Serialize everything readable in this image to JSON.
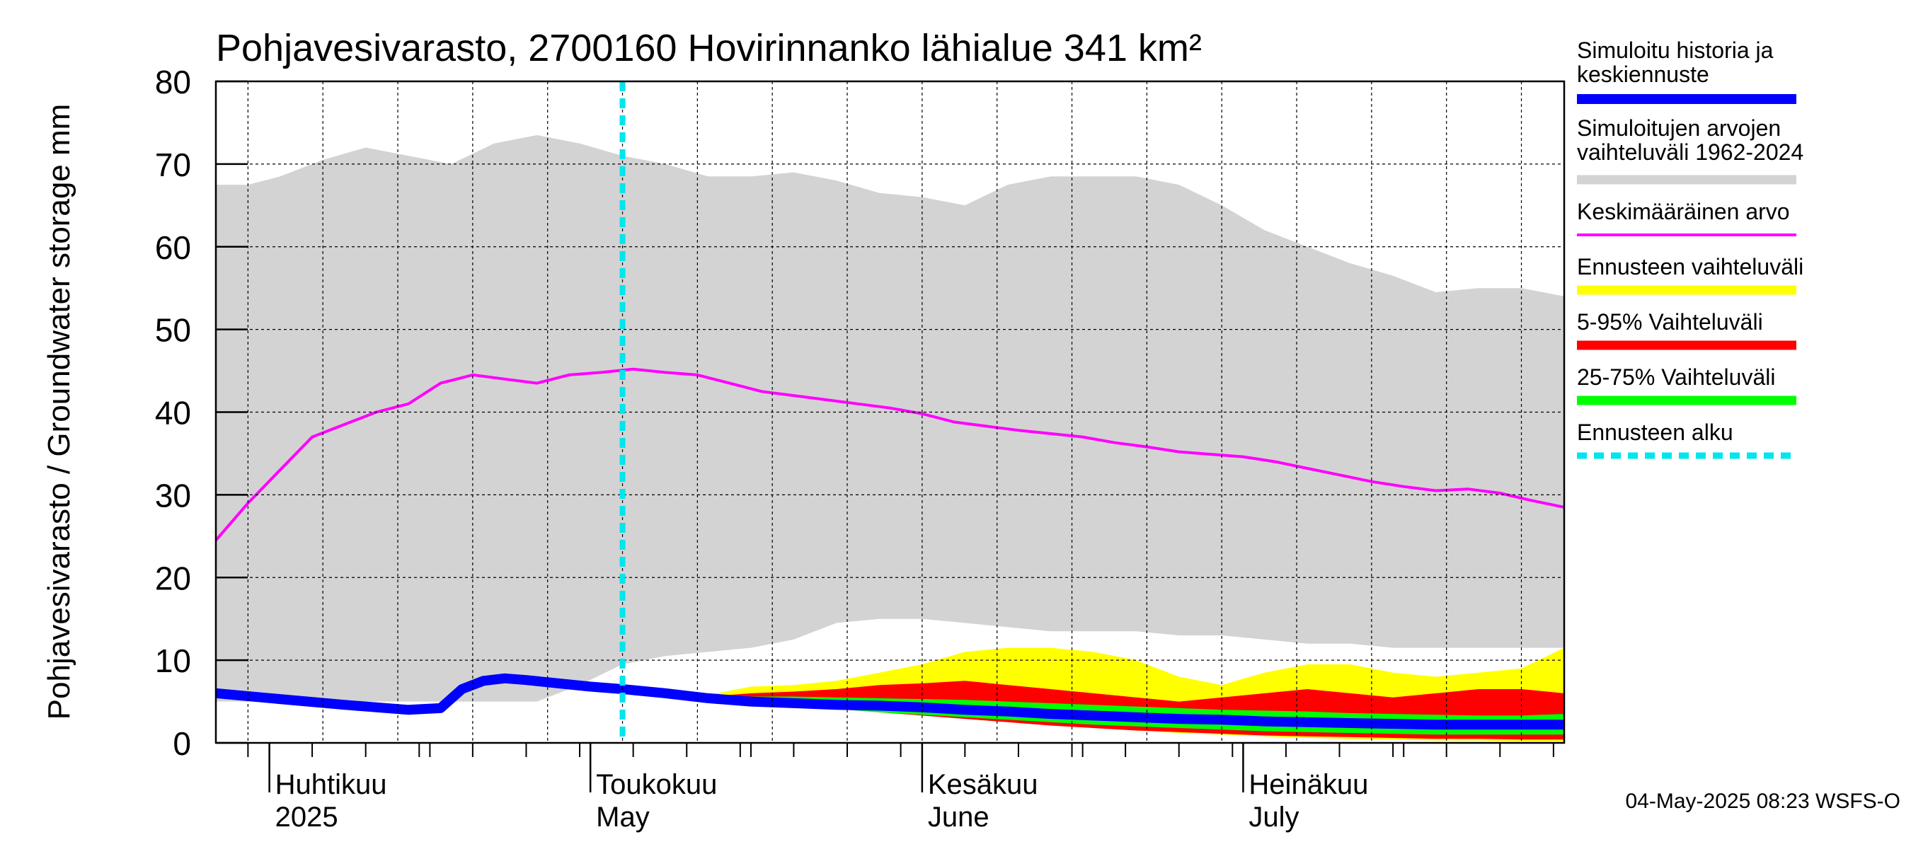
{
  "chart_data": {
    "type": "area",
    "title": "Pohjavesivarasto, 2700160 Hovirinnanko lähialue 341 km²",
    "ylabel": "Pohjavesivarasto / Groundwater storage   mm",
    "ylim": [
      0,
      80
    ],
    "yticks": [
      0,
      10,
      20,
      30,
      40,
      50,
      60,
      70,
      80
    ],
    "x_range": [
      "2025-03-27",
      "2025-07-31"
    ],
    "forecast_start": "2025-05-04",
    "month_labels": [
      {
        "date": "2025-04-01",
        "fi": "Huhtikuu",
        "en": "2025"
      },
      {
        "date": "2025-05-01",
        "fi": "Toukokuu",
        "en": "May"
      },
      {
        "date": "2025-06-01",
        "fi": "Kesäkuu",
        "en": "June"
      },
      {
        "date": "2025-07-01",
        "fi": "Heinäkuu",
        "en": "July"
      }
    ],
    "legend": [
      {
        "label": "Simuloitu historia ja\nkeskiennuste",
        "color": "#0000ff",
        "style": "thick"
      },
      {
        "label": "Simuloitujen arvojen\nvaihteluväli 1962-2024",
        "color": "#d3d3d3",
        "style": "band"
      },
      {
        "label": "Keskimääräinen arvo",
        "color": "#ff00ff",
        "style": "line"
      },
      {
        "label": "Ennusteen vaihteluväli",
        "color": "#ffff00",
        "style": "band"
      },
      {
        "label": "5-95% Vaihteluväli",
        "color": "#ff0000",
        "style": "band"
      },
      {
        "label": "25-75% Vaihteluväli",
        "color": "#00ff00",
        "style": "band"
      },
      {
        "label": "Ennusteen alku",
        "color": "#00e5ee",
        "style": "dashed"
      }
    ],
    "series": [
      {
        "name": "Simuloitujen arvojen vaihteluväli 1962-2024",
        "kind": "band",
        "x": [
          "2025-03-27",
          "2025-03-30",
          "2025-04-02",
          "2025-04-06",
          "2025-04-10",
          "2025-04-14",
          "2025-04-18",
          "2025-04-22",
          "2025-04-26",
          "2025-04-30",
          "2025-05-04",
          "2025-05-08",
          "2025-05-12",
          "2025-05-16",
          "2025-05-20",
          "2025-05-24",
          "2025-05-28",
          "2025-06-01",
          "2025-06-05",
          "2025-06-09",
          "2025-06-13",
          "2025-06-17",
          "2025-06-21",
          "2025-06-25",
          "2025-06-29",
          "2025-07-03",
          "2025-07-07",
          "2025-07-11",
          "2025-07-15",
          "2025-07-19",
          "2025-07-23",
          "2025-07-27",
          "2025-07-31"
        ],
        "low": [
          5.0,
          5.0,
          5.0,
          5.0,
          5.0,
          5.0,
          5.0,
          5.0,
          5.0,
          7.0,
          9.5,
          10.5,
          11.0,
          11.5,
          12.5,
          14.5,
          15.0,
          15.0,
          14.5,
          14.0,
          13.5,
          13.5,
          13.5,
          13.0,
          13.0,
          12.5,
          12.0,
          12.0,
          11.5,
          11.5,
          11.5,
          11.5,
          11.5
        ],
        "high": [
          67.5,
          67.5,
          68.5,
          70.5,
          72.0,
          71.0,
          70.0,
          72.5,
          73.5,
          72.5,
          71.0,
          70.0,
          68.5,
          68.5,
          69.0,
          68.0,
          66.5,
          66.0,
          65.0,
          67.5,
          68.5,
          68.5,
          68.5,
          67.5,
          65.0,
          62.0,
          60.0,
          58.0,
          56.5,
          54.5,
          55.0,
          55.0,
          54.0
        ]
      },
      {
        "name": "Keskimääräinen arvo",
        "kind": "line",
        "x": [
          "2025-03-27",
          "2025-03-30",
          "2025-04-02",
          "2025-04-05",
          "2025-04-08",
          "2025-04-11",
          "2025-04-14",
          "2025-04-17",
          "2025-04-20",
          "2025-04-23",
          "2025-04-26",
          "2025-04-29",
          "2025-05-02",
          "2025-05-05",
          "2025-05-08",
          "2025-05-11",
          "2025-05-14",
          "2025-05-17",
          "2025-05-20",
          "2025-05-23",
          "2025-05-26",
          "2025-05-29",
          "2025-06-01",
          "2025-06-04",
          "2025-06-07",
          "2025-06-10",
          "2025-06-13",
          "2025-06-16",
          "2025-06-19",
          "2025-06-22",
          "2025-06-25",
          "2025-06-28",
          "2025-07-01",
          "2025-07-04",
          "2025-07-07",
          "2025-07-10",
          "2025-07-13",
          "2025-07-16",
          "2025-07-19",
          "2025-07-22",
          "2025-07-25",
          "2025-07-28",
          "2025-07-31"
        ],
        "y": [
          24.5,
          29.0,
          33.0,
          37.0,
          38.5,
          40.0,
          41.0,
          43.5,
          44.5,
          44.0,
          43.5,
          44.5,
          44.8,
          45.2,
          44.8,
          44.5,
          43.5,
          42.5,
          42.0,
          41.5,
          41.0,
          40.5,
          39.8,
          38.8,
          38.3,
          37.8,
          37.4,
          37.0,
          36.3,
          35.8,
          35.2,
          34.9,
          34.6,
          34.0,
          33.2,
          32.4,
          31.6,
          31.0,
          30.5,
          30.7,
          30.2,
          29.3,
          28.5
        ]
      },
      {
        "name": "Ennusteen vaihteluväli",
        "kind": "band",
        "x": [
          "2025-05-12",
          "2025-05-16",
          "2025-05-20",
          "2025-05-24",
          "2025-05-28",
          "2025-06-01",
          "2025-06-05",
          "2025-06-09",
          "2025-06-13",
          "2025-06-17",
          "2025-06-21",
          "2025-06-25",
          "2025-06-29",
          "2025-07-03",
          "2025-07-07",
          "2025-07-11",
          "2025-07-15",
          "2025-07-19",
          "2025-07-23",
          "2025-07-27",
          "2025-07-31"
        ],
        "low": [
          5.3,
          5.0,
          4.6,
          4.2,
          3.8,
          3.4,
          3.0,
          2.6,
          2.2,
          1.8,
          1.5,
          1.2,
          1.0,
          0.8,
          0.6,
          0.5,
          0.4,
          0.3,
          0.3,
          0.2,
          0.2
        ],
        "high": [
          5.8,
          6.8,
          7.0,
          7.5,
          8.5,
          9.5,
          11.0,
          11.5,
          11.5,
          11.0,
          10.0,
          8.0,
          7.0,
          8.5,
          9.5,
          9.5,
          8.5,
          8.0,
          8.5,
          9.0,
          11.5
        ]
      },
      {
        "name": "5-95% Vaihteluväli",
        "kind": "band",
        "x": [
          "2025-05-12",
          "2025-05-16",
          "2025-05-20",
          "2025-05-24",
          "2025-05-28",
          "2025-06-01",
          "2025-06-05",
          "2025-06-09",
          "2025-06-13",
          "2025-06-17",
          "2025-06-21",
          "2025-06-25",
          "2025-06-29",
          "2025-07-03",
          "2025-07-07",
          "2025-07-11",
          "2025-07-15",
          "2025-07-19",
          "2025-07-23",
          "2025-07-27",
          "2025-07-31"
        ],
        "low": [
          5.3,
          4.9,
          4.5,
          4.1,
          3.7,
          3.3,
          2.9,
          2.5,
          2.1,
          1.8,
          1.5,
          1.3,
          1.1,
          0.9,
          0.8,
          0.7,
          0.6,
          0.5,
          0.5,
          0.4,
          0.4
        ],
        "high": [
          5.6,
          6.0,
          6.2,
          6.5,
          7.0,
          7.2,
          7.5,
          7.0,
          6.5,
          6.0,
          5.5,
          5.0,
          5.5,
          6.0,
          6.5,
          6.0,
          5.5,
          6.0,
          6.5,
          6.5,
          6.0
        ]
      },
      {
        "name": "25-75% Vaihteluväli",
        "kind": "band",
        "x": [
          "2025-05-12",
          "2025-05-16",
          "2025-05-20",
          "2025-05-24",
          "2025-05-28",
          "2025-06-01",
          "2025-06-05",
          "2025-06-09",
          "2025-06-13",
          "2025-06-17",
          "2025-06-21",
          "2025-06-25",
          "2025-06-29",
          "2025-07-03",
          "2025-07-07",
          "2025-07-11",
          "2025-07-15",
          "2025-07-19",
          "2025-07-23",
          "2025-07-27",
          "2025-07-31"
        ],
        "low": [
          5.3,
          4.9,
          4.5,
          4.1,
          3.7,
          3.4,
          3.1,
          2.8,
          2.5,
          2.2,
          2.0,
          1.8,
          1.6,
          1.4,
          1.3,
          1.2,
          1.1,
          1.0,
          1.0,
          1.0,
          1.0
        ],
        "high": [
          5.5,
          5.6,
          5.6,
          5.5,
          5.4,
          5.3,
          5.2,
          5.0,
          4.8,
          4.6,
          4.4,
          4.2,
          4.0,
          3.9,
          3.8,
          3.6,
          3.5,
          3.4,
          3.3,
          3.3,
          3.5
        ]
      },
      {
        "name": "Simuloitu historia ja keskiennuste",
        "kind": "line",
        "x": [
          "2025-03-27",
          "2025-04-02",
          "2025-04-08",
          "2025-04-14",
          "2025-04-17",
          "2025-04-19",
          "2025-04-21",
          "2025-04-23",
          "2025-04-25",
          "2025-04-28",
          "2025-05-01",
          "2025-05-04",
          "2025-05-08",
          "2025-05-12",
          "2025-05-16",
          "2025-05-20",
          "2025-05-24",
          "2025-05-28",
          "2025-06-01",
          "2025-06-05",
          "2025-06-09",
          "2025-06-13",
          "2025-06-17",
          "2025-06-21",
          "2025-06-25",
          "2025-06-29",
          "2025-07-03",
          "2025-07-07",
          "2025-07-11",
          "2025-07-15",
          "2025-07-19",
          "2025-07-23",
          "2025-07-27",
          "2025-07-31"
        ],
        "y": [
          6.0,
          5.3,
          4.6,
          4.0,
          4.2,
          6.5,
          7.5,
          7.8,
          7.6,
          7.2,
          6.8,
          6.5,
          6.0,
          5.4,
          5.0,
          4.8,
          4.6,
          4.5,
          4.3,
          4.0,
          3.8,
          3.5,
          3.3,
          3.1,
          2.9,
          2.8,
          2.6,
          2.5,
          2.4,
          2.3,
          2.2,
          2.2,
          2.2,
          2.2
        ]
      }
    ]
  },
  "timestamp": "04-May-2025 08:23 WSFS-O"
}
